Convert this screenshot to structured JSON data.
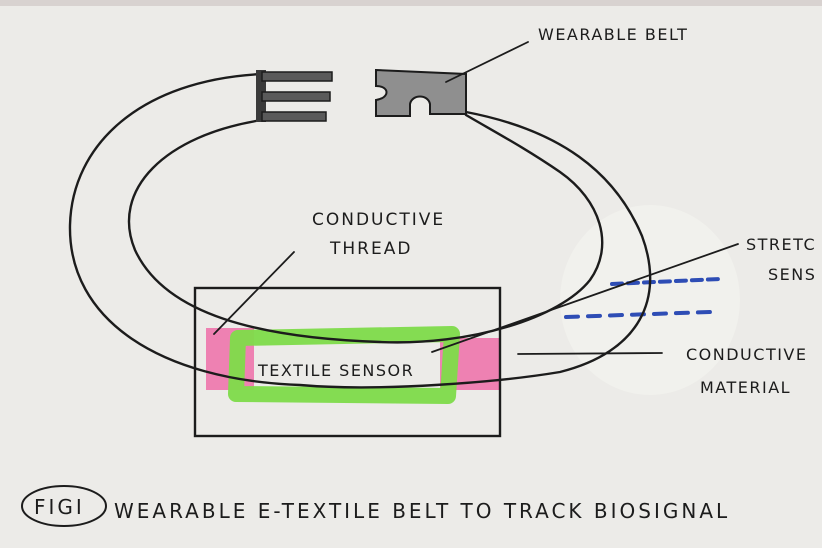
{
  "labels": {
    "wearable_belt": "WEARABLE BELT",
    "conductive_thread_1": "CONDUCTIVE",
    "conductive_thread_2": "THREAD",
    "stretch_sensor_1": "STRETC",
    "stretch_sensor_2": "SENS",
    "conductive_material_1": "CONDUCTIVE",
    "conductive_material_2": "MATERIAL",
    "textile_sensor": "TEXTILE SENSOR"
  },
  "caption": {
    "fig_tag": "FIGI",
    "text": "WEARABLE E-TEXTILE BELT TO TRACK BIOSIGNAL"
  },
  "colors": {
    "paper": "#ecebe8",
    "ink": "#1c1c1c",
    "pink_highlight": "#ef6fa8",
    "green_highlight": "#7edb4a",
    "blue_ink": "#2e4db5",
    "buckle_grey": "#8f8f8f"
  }
}
